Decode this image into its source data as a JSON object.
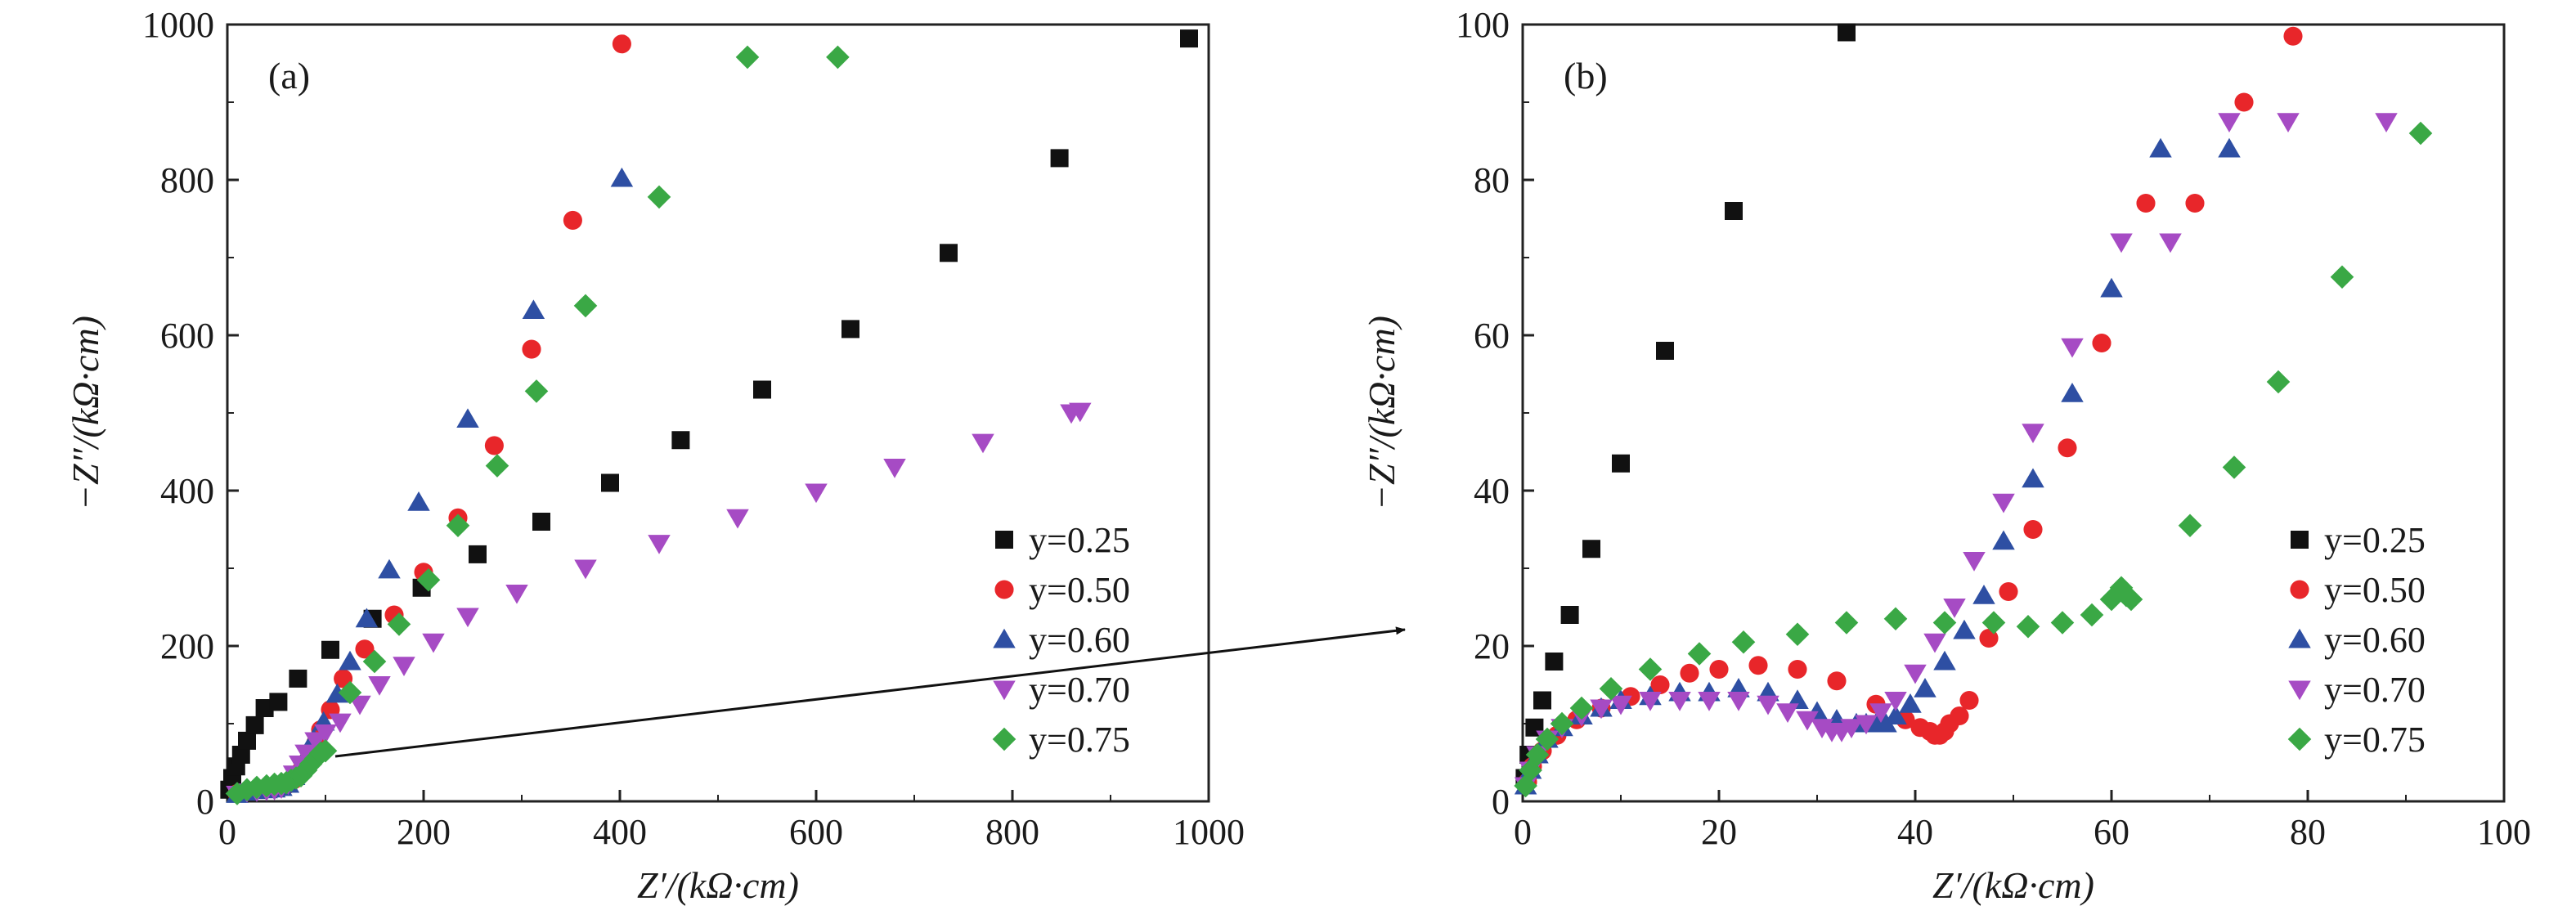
{
  "chart_data": [
    {
      "type": "scatter",
      "panel_label": "(a)",
      "xlabel": "Z′/(kΩ·cm)",
      "ylabel": "−Z″/(kΩ·cm)",
      "xlim": [
        0,
        1000
      ],
      "ylim": [
        0,
        1000
      ],
      "xticks": [
        "0",
        "200",
        "400",
        "600",
        "800",
        "1000"
      ],
      "yticks": [
        "0",
        "200",
        "400",
        "600",
        "800",
        "1000"
      ],
      "grid": false,
      "legend_position": "bottom-right",
      "series": [
        {
          "name": "y=0.25",
          "marker": "square",
          "color": "#111111",
          "x": [
            2,
            5,
            9,
            14,
            20,
            28,
            38,
            52,
            72,
            105,
            148,
            198,
            255,
            320,
            390,
            462,
            545,
            635,
            735,
            848,
            980
          ],
          "y": [
            15,
            30,
            45,
            60,
            78,
            98,
            120,
            128,
            158,
            195,
            235,
            275,
            318,
            360,
            410,
            465,
            530,
            608,
            706,
            828,
            982
          ]
        },
        {
          "name": "y=0.50",
          "marker": "circle",
          "color": "#e8262a",
          "x": [
            10,
            20,
            30,
            40,
            48,
            55,
            62,
            68,
            74,
            80,
            85,
            90,
            95,
            105,
            118,
            140,
            170,
            200,
            235,
            272,
            310,
            352,
            402
          ],
          "y": [
            10,
            13,
            15,
            16,
            17,
            18,
            22,
            28,
            38,
            50,
            62,
            75,
            92,
            118,
            158,
            196,
            240,
            295,
            365,
            458,
            582,
            748,
            975
          ]
        },
        {
          "name": "y=0.60",
          "marker": "triangle-up",
          "color": "#2e4fa3",
          "x": [
            10,
            20,
            30,
            40,
            48,
            55,
            62,
            68,
            74,
            80,
            88,
            98,
            112,
            125,
            142,
            165,
            195,
            245,
            312,
            402
          ],
          "y": [
            9,
            12,
            14,
            15,
            16,
            18,
            22,
            32,
            45,
            58,
            80,
            102,
            138,
            180,
            235,
            298,
            385,
            492,
            632,
            802
          ]
        },
        {
          "name": "y=0.70",
          "marker": "triangle-down",
          "color": "#a64bc4",
          "x": [
            10,
            20,
            30,
            40,
            48,
            55,
            62,
            68,
            74,
            80,
            90,
            100,
            115,
            135,
            155,
            180,
            210,
            245,
            295,
            365,
            440,
            520,
            600,
            680,
            770,
            860,
            869
          ],
          "y": [
            9,
            12,
            13,
            14,
            15,
            17,
            22,
            35,
            48,
            62,
            78,
            88,
            102,
            125,
            150,
            175,
            205,
            238,
            268,
            300,
            332,
            365,
            398,
            430,
            462,
            500,
            502
          ]
        },
        {
          "name": "y=0.75",
          "marker": "diamond",
          "color": "#3aa845",
          "x": [
            10,
            20,
            30,
            40,
            48,
            55,
            60,
            65,
            70,
            75,
            80,
            85,
            90,
            95,
            100,
            125,
            150,
            175,
            205,
            235,
            275,
            315,
            365,
            440,
            530,
            622
          ],
          "y": [
            10,
            15,
            18,
            20,
            22,
            23,
            24,
            27,
            30,
            33,
            40,
            48,
            55,
            62,
            65,
            140,
            180,
            228,
            285,
            355,
            432,
            528,
            638,
            778,
            958,
            958
          ]
        }
      ]
    },
    {
      "type": "scatter",
      "panel_label": "(b)",
      "xlabel": "Z′/(kΩ·cm)",
      "ylabel": "−Z″/(kΩ·cm)",
      "xlim": [
        0,
        100
      ],
      "ylim": [
        0,
        100
      ],
      "xticks": [
        "0",
        "20",
        "40",
        "60",
        "80",
        "100"
      ],
      "yticks": [
        "0",
        "20",
        "40",
        "60",
        "80",
        "100"
      ],
      "grid": false,
      "legend_position": "bottom-right",
      "series": [
        {
          "name": "y=0.25",
          "marker": "square",
          "color": "#111111",
          "x": [
            0.2,
            0.6,
            1.2,
            2.0,
            3.2,
            4.8,
            7.0,
            10.0,
            14.5,
            21.5,
            33.0
          ],
          "y": [
            3,
            6,
            9.5,
            13,
            18,
            24,
            32.5,
            43.5,
            58,
            76,
            99
          ]
        },
        {
          "name": "y=0.50",
          "marker": "circle",
          "color": "#e8262a",
          "x": [
            0.5,
            1,
            2,
            3.5,
            5.5,
            8,
            11,
            14,
            17,
            20,
            24,
            28,
            32,
            36,
            39,
            40.5,
            41.5,
            42,
            42.5,
            43,
            43.5,
            44.5,
            45.5,
            47.5,
            49.5,
            52,
            55.5,
            59,
            63.5,
            68.5,
            73.5,
            78.5
          ],
          "y": [
            2.5,
            4.5,
            6.5,
            8.5,
            10.5,
            12,
            13.5,
            15,
            16.5,
            17,
            17.5,
            17,
            15.5,
            12.5,
            10.5,
            9.5,
            9,
            8.5,
            8.5,
            9,
            10,
            11,
            13,
            21,
            27,
            35,
            45.5,
            59,
            77,
            77,
            90,
            98.5
          ]
        },
        {
          "name": "y=0.60",
          "marker": "triangle-up",
          "color": "#2e4fa3",
          "x": [
            0.3,
            0.8,
            1.5,
            2.5,
            4,
            6,
            8,
            10,
            13,
            16,
            19,
            22,
            25,
            28,
            30,
            32,
            34,
            35,
            36,
            37,
            38,
            39.5,
            41,
            43,
            45,
            47,
            49,
            52,
            56,
            60,
            65,
            72
          ],
          "y": [
            2,
            4,
            6,
            8,
            9.5,
            11,
            12,
            13,
            13.5,
            14,
            14,
            14.5,
            14,
            13,
            11.5,
            10.5,
            10,
            10,
            10,
            10,
            11,
            12.5,
            14.5,
            18,
            22,
            26.5,
            33.5,
            41.5,
            52.5,
            66,
            84,
            84
          ]
        },
        {
          "name": "y=0.70",
          "marker": "triangle-down",
          "color": "#a64bc4",
          "x": [
            0.3,
            0.8,
            1.5,
            2.5,
            4,
            6,
            8,
            10,
            13,
            16,
            19,
            22,
            25,
            27,
            29,
            30.5,
            31.5,
            32.5,
            33.5,
            35,
            36.5,
            38,
            40,
            42,
            44,
            46,
            49,
            52,
            56,
            61,
            66,
            72,
            78,
            88
          ],
          "y": [
            2,
            4,
            6,
            8,
            9.5,
            11,
            12,
            12.5,
            13,
            13,
            13,
            13,
            12.5,
            11.5,
            10.5,
            9.5,
            9,
            9,
            9.5,
            10,
            11.5,
            13,
            16.5,
            20.5,
            25,
            31,
            38.5,
            47.5,
            58.5,
            72,
            72,
            87.5,
            87.5,
            87.5
          ]
        },
        {
          "name": "y=0.75",
          "marker": "diamond",
          "color": "#3aa845",
          "x": [
            0.3,
            0.8,
            1.5,
            2.5,
            4,
            6,
            9,
            13,
            18,
            22.5,
            28,
            33,
            38,
            43,
            48,
            51.5,
            55,
            58,
            60,
            61,
            61.5,
            62,
            68,
            72.5,
            77,
            83.5,
            91.5
          ],
          "y": [
            2,
            4,
            6,
            8,
            10,
            12,
            14.5,
            17,
            19,
            20.5,
            21.5,
            23,
            23.5,
            23,
            23,
            22.5,
            23,
            24,
            26,
            27.5,
            26.5,
            26,
            35.5,
            43,
            54,
            67.5,
            86
          ]
        }
      ]
    }
  ]
}
